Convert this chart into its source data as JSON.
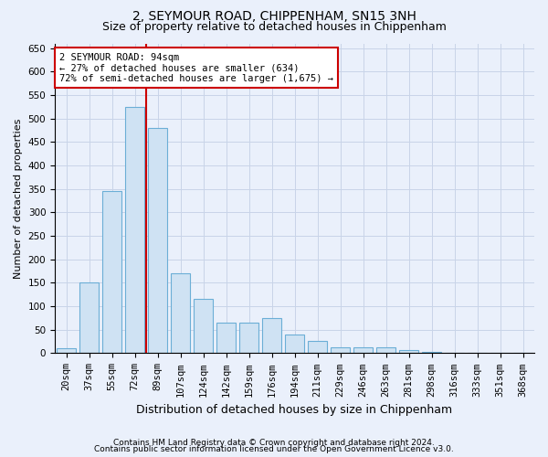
{
  "title1": "2, SEYMOUR ROAD, CHIPPENHAM, SN15 3NH",
  "title2": "Size of property relative to detached houses in Chippenham",
  "xlabel": "Distribution of detached houses by size in Chippenham",
  "ylabel": "Number of detached properties",
  "categories": [
    "20sqm",
    "37sqm",
    "55sqm",
    "72sqm",
    "89sqm",
    "107sqm",
    "124sqm",
    "142sqm",
    "159sqm",
    "176sqm",
    "194sqm",
    "211sqm",
    "229sqm",
    "246sqm",
    "263sqm",
    "281sqm",
    "298sqm",
    "316sqm",
    "333sqm",
    "351sqm",
    "368sqm"
  ],
  "values": [
    10,
    150,
    345,
    525,
    480,
    170,
    115,
    65,
    65,
    75,
    40,
    27,
    12,
    12,
    12,
    7,
    2,
    0,
    0,
    0,
    0
  ],
  "bar_color": "#cfe2f3",
  "bar_edge_color": "#6baed6",
  "vline_index": 3,
  "vline_color": "#cc0000",
  "annotation_line1": "2 SEYMOUR ROAD: 94sqm",
  "annotation_line2": "← 27% of detached houses are smaller (634)",
  "annotation_line3": "72% of semi-detached houses are larger (1,675) →",
  "annotation_box_facecolor": "#ffffff",
  "annotation_box_edgecolor": "#cc0000",
  "ylim": [
    0,
    660
  ],
  "yticks": [
    0,
    50,
    100,
    150,
    200,
    250,
    300,
    350,
    400,
    450,
    500,
    550,
    600,
    650
  ],
  "grid_color": "#c8d4e8",
  "footnote1": "Contains HM Land Registry data © Crown copyright and database right 2024.",
  "footnote2": "Contains public sector information licensed under the Open Government Licence v3.0.",
  "bg_color": "#eaf0fb",
  "plot_bg_color": "#eaf0fb",
  "title1_fontsize": 10,
  "title2_fontsize": 9,
  "ylabel_fontsize": 8,
  "xlabel_fontsize": 9,
  "tick_fontsize": 7.5,
  "footnote_fontsize": 6.5
}
